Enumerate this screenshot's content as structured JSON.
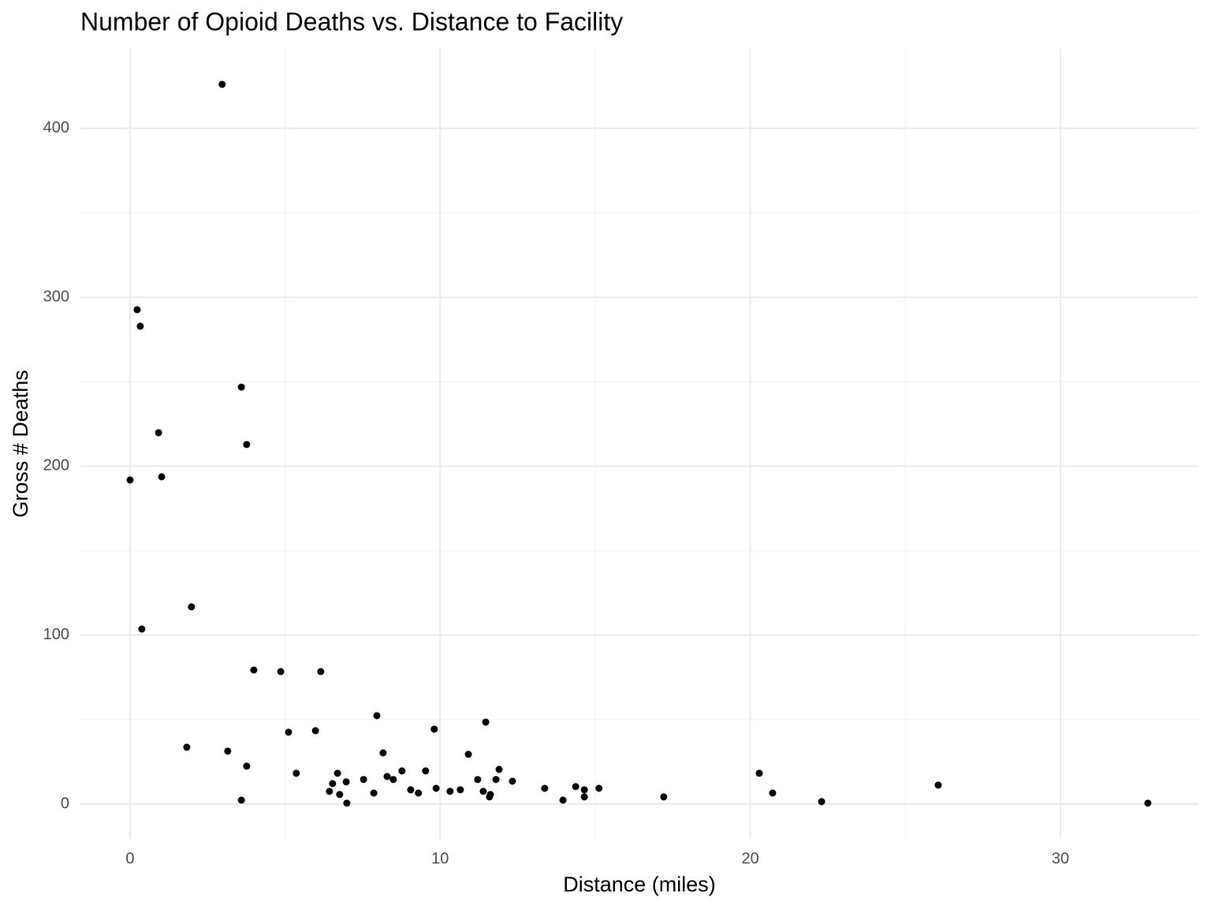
{
  "chart_data": {
    "type": "scatter",
    "title": "Number of Opioid Deaths vs. Distance to Facility",
    "x_label": "Distance (miles)",
    "y_label": "Gross # Deaths",
    "color": "#000000",
    "x": [
      2.97,
      0.23,
      0.33,
      3.59,
      0.92,
      3.76,
      1.02,
      0,
      1.98,
      0.38,
      3.99,
      4.86,
      6.15,
      7.96,
      11.47,
      9.81,
      5.11,
      5.98,
      1.83,
      3.15,
      8.16,
      10.91,
      3.76,
      11.9,
      9.53,
      8.77,
      5.36,
      6.69,
      20.29,
      8.29,
      8.49,
      7.53,
      11.21,
      11.8,
      6.97,
      12.33,
      6.53,
      26.06,
      13.37,
      14.37,
      15.12,
      9.87,
      9.05,
      10.65,
      14.65,
      10.32,
      11.39,
      6.43,
      7.86,
      9.3,
      20.72,
      6.76,
      11.62,
      11.59,
      14.65,
      17.21,
      13.96,
      3.59,
      22.3,
      6.99,
      32.82
    ],
    "values": [
      426,
      292.6,
      282.8,
      246.8,
      219.8,
      212.8,
      193.7,
      191.8,
      116.7,
      103.6,
      79.3,
      78.4,
      78.4,
      52.3,
      48.5,
      44.3,
      42.5,
      43.4,
      33.6,
      31.3,
      30.3,
      29.4,
      22.4,
      20.5,
      19.6,
      19.6,
      18.2,
      18.2,
      18.2,
      16.3,
      14.5,
      14.5,
      14.5,
      14.5,
      13.1,
      13.5,
      12.1,
      11.2,
      9.3,
      10.3,
      9.3,
      9.3,
      8.4,
      8.4,
      8.4,
      7.5,
      7.5,
      7.5,
      6.5,
      6.5,
      6.5,
      5.6,
      5.6,
      4.2,
      4.2,
      4.2,
      2.3,
      2.3,
      1.4,
      0.5,
      0.5
    ],
    "xlim": [
      -1.6,
      34.45
    ],
    "ylim": [
      -20.5,
      447
    ],
    "xticks": [
      0,
      10,
      20,
      30
    ],
    "yticks": [
      0,
      100,
      200,
      300,
      400
    ],
    "x_minor_grid": [
      5,
      15,
      25
    ],
    "y_minor_grid": [
      50,
      150,
      250,
      350
    ],
    "grid": true
  }
}
